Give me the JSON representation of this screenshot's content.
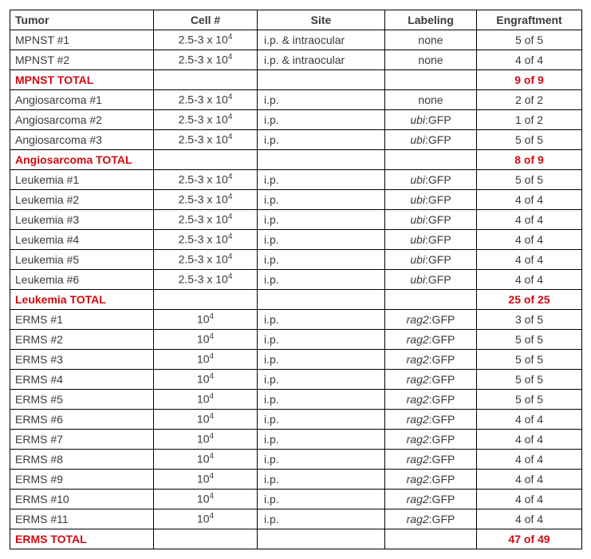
{
  "headers": {
    "tumor": "Tumor",
    "cell": "Cell #",
    "site": "Site",
    "labeling": "Labeling",
    "engraftment": "Engraftment"
  },
  "cell_values": {
    "std_base": "2.5-3 x 10",
    "std_exp": "4",
    "erms_base": "10",
    "erms_exp": "4"
  },
  "labeling": {
    "none": "none",
    "ubi_prefix": "ubi",
    "rag2_prefix": "rag2",
    "gfp_suffix": ":GFP"
  },
  "rows": [
    {
      "tumor": "MPNST #1",
      "cell": "std",
      "site": "i.p. & intraocular",
      "label": "none",
      "engr": "5 of 5"
    },
    {
      "tumor": "MPNST #2",
      "cell": "std",
      "site": "i.p. & intraocular",
      "label": "none",
      "engr": "4 of 4"
    },
    {
      "tumor": "MPNST TOTAL",
      "total": true,
      "engr": "9 of 9"
    },
    {
      "tumor": "Angiosarcoma #1",
      "cell": "std",
      "site": "i.p.",
      "label": "none",
      "engr": "2 of 2"
    },
    {
      "tumor": "Angiosarcoma #2",
      "cell": "std",
      "site": "i.p.",
      "label": "ubi",
      "engr": "1 of 2"
    },
    {
      "tumor": "Angiosarcoma #3",
      "cell": "std",
      "site": "i.p.",
      "label": "ubi",
      "engr": "5 of 5"
    },
    {
      "tumor": "Angiosarcoma TOTAL",
      "total": true,
      "engr": "8 of 9"
    },
    {
      "tumor": "Leukemia #1",
      "cell": "std",
      "site": "i.p.",
      "label": "ubi",
      "engr": "5 of 5"
    },
    {
      "tumor": "Leukemia #2",
      "cell": "std",
      "site": "i.p.",
      "label": "ubi",
      "engr": "4 of 4"
    },
    {
      "tumor": "Leukemia #3",
      "cell": "std",
      "site": "i.p.",
      "label": "ubi",
      "engr": "4 of 4"
    },
    {
      "tumor": "Leukemia #4",
      "cell": "std",
      "site": "i.p.",
      "label": "ubi",
      "engr": "4 of 4"
    },
    {
      "tumor": "Leukemia #5",
      "cell": "std",
      "site": "i.p.",
      "label": "ubi",
      "engr": "4 of 4"
    },
    {
      "tumor": "Leukemia #6",
      "cell": "std",
      "site": "i.p.",
      "label": "ubi",
      "engr": "4 of 4"
    },
    {
      "tumor": "Leukemia TOTAL",
      "total": true,
      "engr": "25 of 25"
    },
    {
      "tumor": "ERMS #1",
      "cell": "erms",
      "site": "i.p.",
      "label": "rag2",
      "engr": "3 of 5"
    },
    {
      "tumor": "ERMS #2",
      "cell": "erms",
      "site": "i.p.",
      "label": "rag2",
      "engr": "5 of 5"
    },
    {
      "tumor": "ERMS #3",
      "cell": "erms",
      "site": "i.p.",
      "label": "rag2",
      "engr": "5 of 5"
    },
    {
      "tumor": "ERMS #4",
      "cell": "erms",
      "site": "i.p.",
      "label": "rag2",
      "engr": "5 of 5"
    },
    {
      "tumor": "ERMS #5",
      "cell": "erms",
      "site": "i.p.",
      "label": "rag2",
      "engr": "5 of 5"
    },
    {
      "tumor": "ERMS #6",
      "cell": "erms",
      "site": "i.p.",
      "label": "rag2",
      "engr": "4 of 4"
    },
    {
      "tumor": "ERMS #7",
      "cell": "erms",
      "site": "i.p.",
      "label": "rag2",
      "engr": "4 of 4"
    },
    {
      "tumor": "ERMS #8",
      "cell": "erms",
      "site": "i.p.",
      "label": "rag2",
      "engr": "4 of 4"
    },
    {
      "tumor": "ERMS #9",
      "cell": "erms",
      "site": "i.p.",
      "label": "rag2",
      "engr": "4 of 4"
    },
    {
      "tumor": "ERMS #10",
      "cell": "erms",
      "site": "i.p.",
      "label": "rag2",
      "engr": "4 of 4"
    },
    {
      "tumor": "ERMS #11",
      "cell": "erms",
      "site": "i.p.",
      "label": "rag2",
      "engr": "4 of 4"
    },
    {
      "tumor": "ERMS TOTAL",
      "total": true,
      "engr": "47 of 49"
    }
  ],
  "style": {
    "total_color": "#d20a11",
    "text_color": "#3a3a3a",
    "border_color": "#000000",
    "background": "#ffffff",
    "font_size_pt": 14
  }
}
